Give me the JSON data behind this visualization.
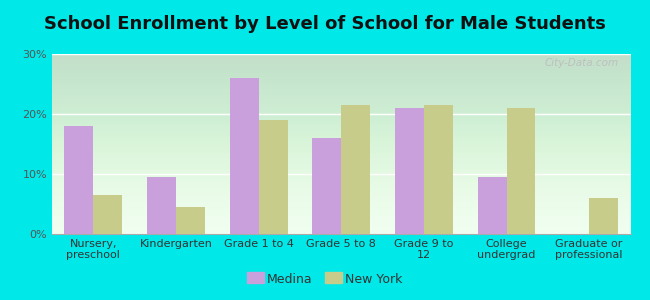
{
  "title": "School Enrollment by Level of School for Male Students",
  "categories": [
    "Nursery,\npreschool",
    "Kindergarten",
    "Grade 1 to 4",
    "Grade 5 to 8",
    "Grade 9 to\n12",
    "College\nundergrad",
    "Graduate or\nprofessional"
  ],
  "medina": [
    18.0,
    9.5,
    26.0,
    16.0,
    21.0,
    9.5,
    0.0
  ],
  "new_york": [
    6.5,
    4.5,
    19.0,
    21.5,
    21.5,
    21.0,
    6.0
  ],
  "medina_color": "#c9a0dc",
  "new_york_color": "#c8cc8a",
  "background_outer": "#00e8e8",
  "background_inner_top": "#efffef",
  "background_inner_bottom": "#cceecc",
  "ylim": [
    0,
    30
  ],
  "yticks": [
    0,
    10,
    20,
    30
  ],
  "ytick_labels": [
    "0%",
    "10%",
    "20%",
    "30%"
  ],
  "legend_labels": [
    "Medina",
    "New York"
  ],
  "bar_width": 0.35,
  "title_fontsize": 13,
  "tick_fontsize": 8,
  "legend_fontsize": 9,
  "watermark": "City-Data.com"
}
